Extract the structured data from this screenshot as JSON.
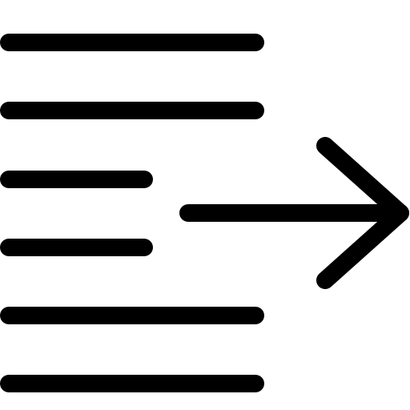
{
  "icon": {
    "name": "indent-right-icon",
    "stroke_color": "#000000",
    "background_color": "#ffffff"
  }
}
